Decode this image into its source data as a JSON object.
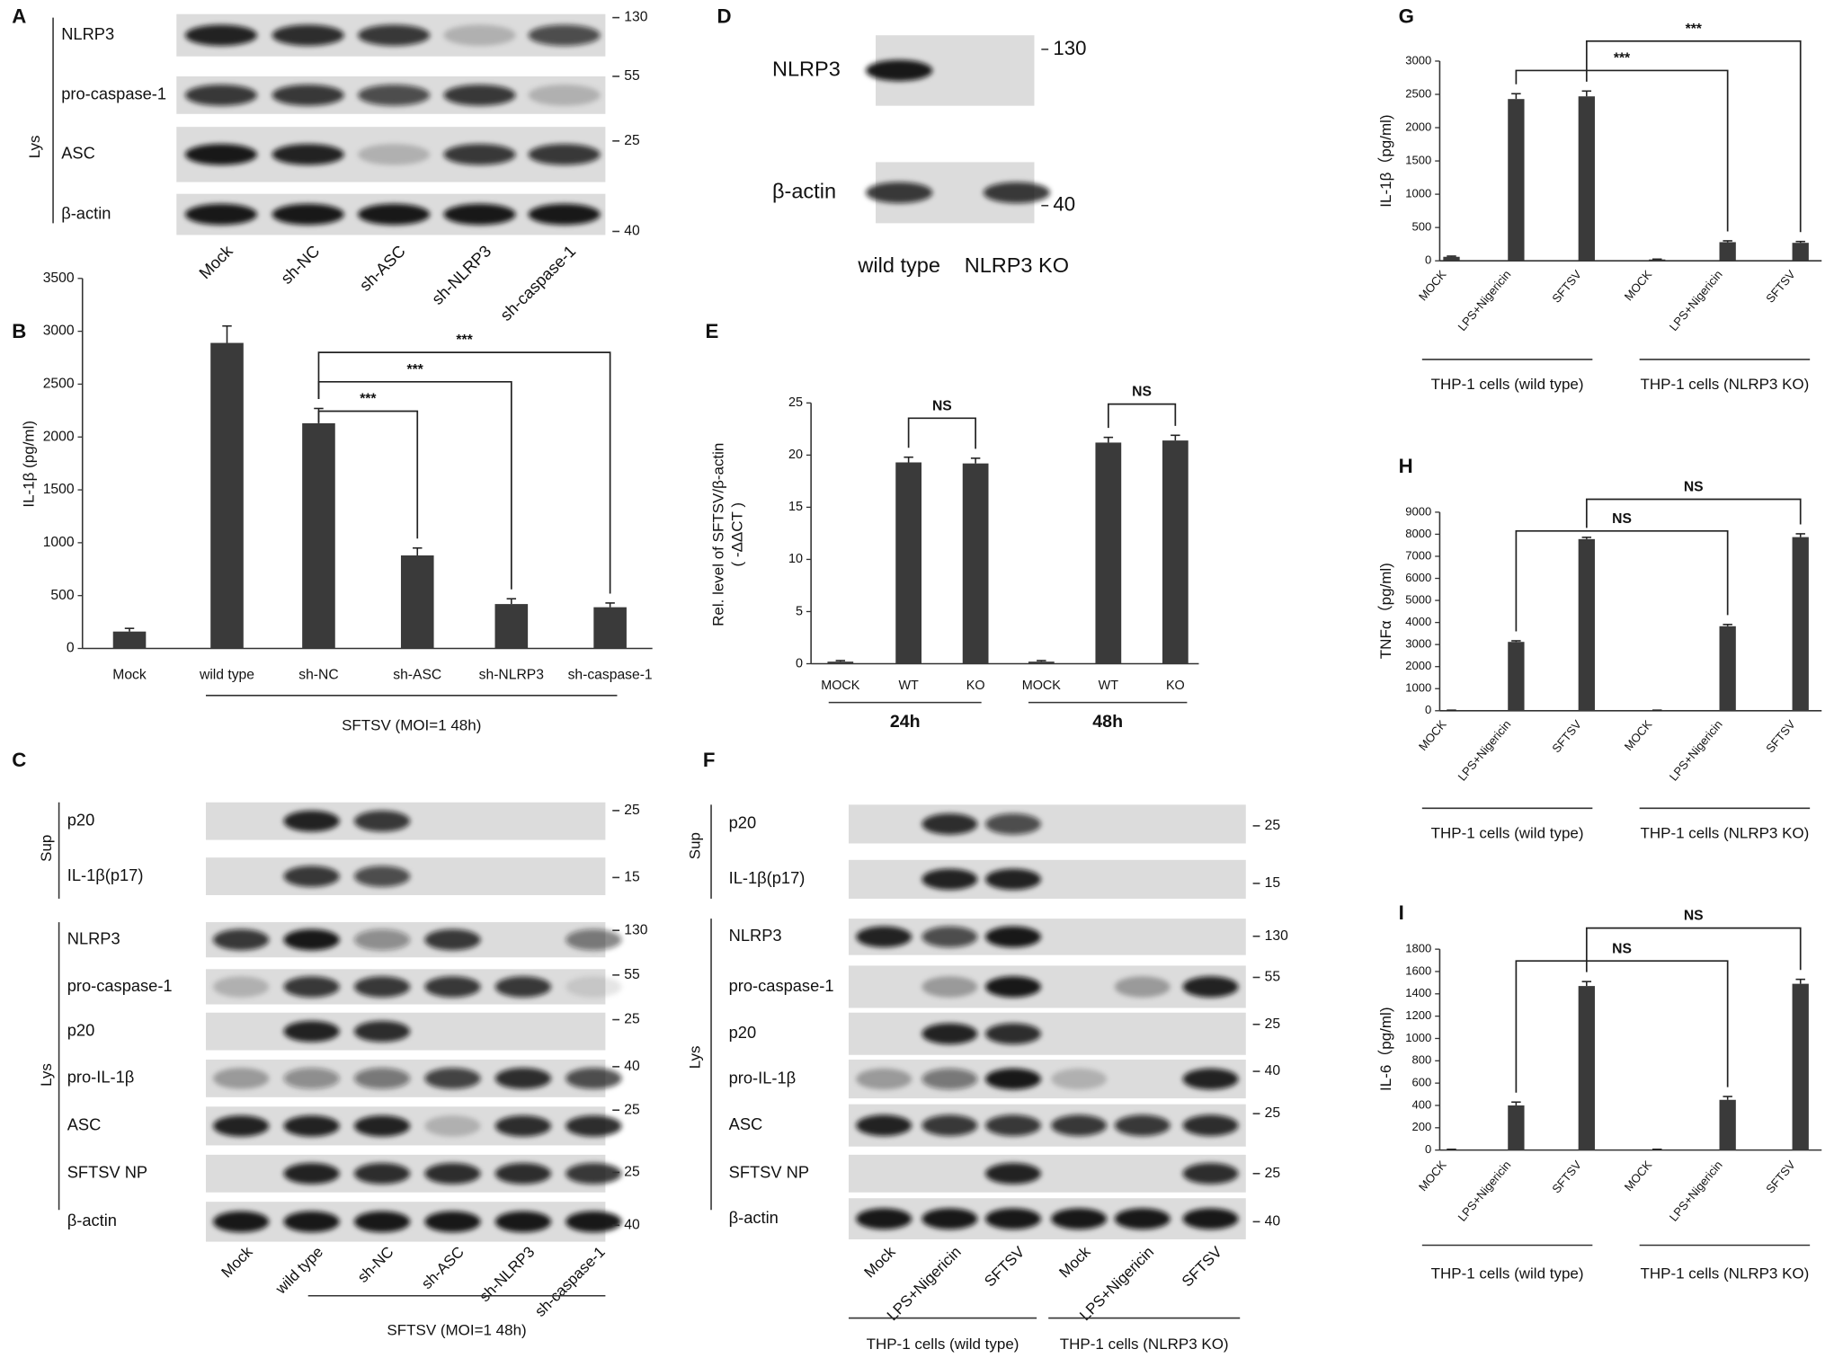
{
  "chart_data": [
    {
      "type": "bar",
      "panel": "B",
      "ylabel": [
        "IL-1β (pg/ml)"
      ],
      "categories": [
        "Mock",
        "wild type",
        "sh-NC",
        "sh-ASC",
        "sh-NLRP3",
        "sh-caspase-1"
      ],
      "series": [
        {
          "color": "#3a3a3a",
          "values": [
            160,
            2890,
            2130,
            880,
            420,
            390
          ],
          "errors": [
            30,
            160,
            140,
            70,
            50,
            40
          ]
        }
      ],
      "ylim": [
        0,
        3500
      ],
      "yticks": [
        0,
        500,
        1000,
        1500,
        2000,
        2500,
        3000,
        3500
      ],
      "groups": [
        "SFTSV (MOI=1 48h)"
      ],
      "annotations": [
        "***",
        "***",
        "***"
      ]
    },
    {
      "type": "bar",
      "panel": "E",
      "ylabel": [
        "Rel. level of SFTSV/β-actin",
        "( -ΔΔCT )"
      ],
      "categories": [
        "MOCK",
        "WT",
        "KO",
        "MOCK",
        "WT",
        "KO"
      ],
      "series": [
        {
          "color": "#3a3a3a",
          "values": [
            0.2,
            19.3,
            19.2,
            0.2,
            21.2,
            21.4
          ],
          "errors": [
            0.1,
            0.5,
            0.5,
            0.1,
            0.5,
            0.5
          ]
        }
      ],
      "ylim": [
        0,
        25
      ],
      "yticks": [
        0,
        5,
        10,
        15,
        20,
        25
      ],
      "groups": [
        "24h",
        "48h"
      ],
      "annotations": [
        "NS",
        "NS"
      ]
    },
    {
      "type": "bar",
      "panel": "G",
      "ylabel": [
        "IL-1β（pg/ml)"
      ],
      "categories": [
        "MOCK",
        "LPS+Nigericin",
        "SFTSV",
        "MOCK",
        "LPS+Nigericin",
        "SFTSV"
      ],
      "series": [
        {
          "color": "#3a3a3a",
          "values": [
            60,
            2430,
            2470,
            20,
            280,
            270
          ],
          "errors": [
            10,
            80,
            80,
            5,
            20,
            20
          ]
        }
      ],
      "ylim": [
        0,
        3000
      ],
      "yticks": [
        0,
        500,
        1000,
        1500,
        2000,
        2500,
        3000
      ],
      "groups": [
        "THP-1 cells (wild type)",
        "THP-1 cells (NLRP3 KO)"
      ],
      "annotations": [
        "***",
        "***"
      ]
    },
    {
      "type": "bar",
      "panel": "H",
      "ylabel": [
        "TNFα（pg/ml)"
      ],
      "categories": [
        "MOCK",
        "LPS+Nigericin",
        "SFTSV",
        "MOCK",
        "LPS+Nigericin",
        "SFTSV"
      ],
      "series": [
        {
          "color": "#3a3a3a",
          "values": [
            20,
            3120,
            7780,
            20,
            3830,
            7870
          ],
          "errors": [
            5,
            50,
            80,
            5,
            80,
            150
          ]
        }
      ],
      "ylim": [
        0,
        9000
      ],
      "yticks": [
        0,
        1000,
        2000,
        3000,
        4000,
        5000,
        6000,
        7000,
        8000,
        9000
      ],
      "groups": [
        "THP-1 cells (wild type)",
        "THP-1 cells (NLRP3 KO)"
      ],
      "annotations": [
        "NS",
        "NS"
      ]
    },
    {
      "type": "bar",
      "panel": "I",
      "ylabel": [
        "IL-6（pg/ml)"
      ],
      "categories": [
        "MOCK",
        "LPS+Nigericin",
        "SFTSV",
        "MOCK",
        "LPS+Nigericin",
        "SFTSV"
      ],
      "series": [
        {
          "color": "#3a3a3a",
          "values": [
            5,
            400,
            1470,
            5,
            450,
            1490
          ],
          "errors": [
            2,
            30,
            40,
            2,
            30,
            40
          ]
        }
      ],
      "ylim": [
        0,
        1800
      ],
      "yticks": [
        0,
        200,
        400,
        600,
        800,
        1000,
        1200,
        1400,
        1600,
        1800
      ],
      "groups": [
        "THP-1 cells (wild type)",
        "THP-1 cells (NLRP3 KO)"
      ],
      "annotations": [
        "NS",
        "NS"
      ]
    }
  ],
  "blots": [
    {
      "panel": "A",
      "rows": [
        {
          "label": "NLRP3",
          "marker": 130
        },
        {
          "label": "pro-caspase-1",
          "marker": 55
        },
        {
          "label": "ASC",
          "marker": 25
        },
        {
          "label": "β-actin",
          "marker": 40
        }
      ],
      "lanes": [
        "Mock",
        "sh-NC",
        "sh-ASC",
        "sh-NLRP3",
        "sh-caspase-1"
      ],
      "side_labels": [
        "Lys"
      ],
      "groups": []
    },
    {
      "panel": "C",
      "rows": [
        {
          "label": "p20",
          "marker": 25
        },
        {
          "label": "IL-1β(p17)",
          "marker": 15
        },
        {
          "label": "NLRP3",
          "marker": 130
        },
        {
          "label": "pro-caspase-1",
          "marker": 55
        },
        {
          "label": "p20",
          "marker": 25
        },
        {
          "label": "pro-IL-1β",
          "marker": 40
        },
        {
          "label": "ASC",
          "marker": 25
        },
        {
          "label": "SFTSV NP",
          "marker": 25
        },
        {
          "label": "β-actin",
          "marker": 40
        }
      ],
      "lanes": [
        "Mock",
        "wild type",
        "sh-NC",
        "sh-ASC",
        "sh-NLRP3",
        "sh-caspase-1"
      ],
      "side_labels": [
        "Sup",
        "Lys"
      ],
      "groups": [
        "SFTSV (MOI=1 48h)"
      ]
    },
    {
      "panel": "D",
      "rows": [
        {
          "label": "NLRP3",
          "marker": 130
        },
        {
          "label": "β-actin",
          "marker": 40
        }
      ],
      "lanes": [
        "wild type",
        "NLRP3 KO"
      ],
      "side_labels": [],
      "groups": []
    },
    {
      "panel": "F",
      "rows": [
        {
          "label": "p20",
          "marker": 25
        },
        {
          "label": "IL-1β(p17)",
          "marker": 15
        },
        {
          "label": "NLRP3",
          "marker": 130
        },
        {
          "label": "pro-caspase-1",
          "marker": 55
        },
        {
          "label": "p20",
          "marker": 25
        },
        {
          "label": "pro-IL-1β",
          "marker": 40
        },
        {
          "label": "ASC",
          "marker": 25
        },
        {
          "label": "SFTSV NP",
          "marker": 25
        },
        {
          "label": "β-actin",
          "marker": 40
        }
      ],
      "lanes": [
        "Mock",
        "LPS+Nigericin",
        "SFTSV",
        "Mock",
        "LPS+Nigericin",
        "SFTSV"
      ],
      "side_labels": [
        "Sup",
        "Lys"
      ],
      "groups": [
        "THP-1 cells (wild type)",
        "THP-1 cells (NLRP3 KO)"
      ]
    }
  ]
}
